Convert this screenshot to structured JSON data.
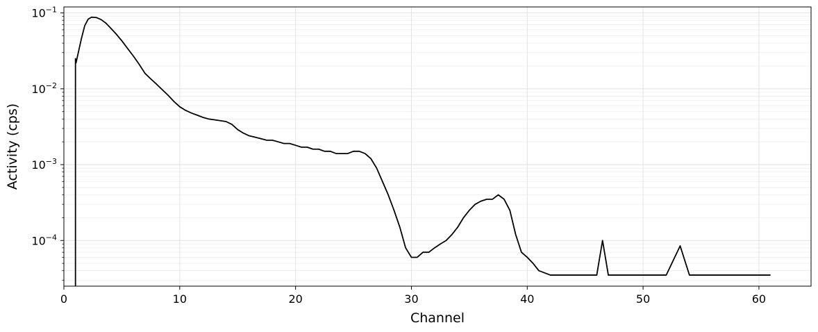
{
  "chart_data": {
    "type": "line",
    "title": "",
    "xlabel": "Channel",
    "ylabel": "Activity (cps)",
    "xlim": [
      0,
      64.5
    ],
    "ylim": [
      2.5e-05,
      0.12
    ],
    "y_scale": "log",
    "grid": true,
    "legend": "none",
    "x_ticks": [
      0,
      10,
      20,
      30,
      40,
      50,
      60
    ],
    "x_tick_labels": [
      "0",
      "10",
      "20",
      "30",
      "40",
      "50",
      "60"
    ],
    "y_ticks": [
      0.1,
      0.01,
      0.001,
      0.0001
    ],
    "y_tick_labels": [
      {
        "base": "10",
        "exp": "−1"
      },
      {
        "base": "10",
        "exp": "−2"
      },
      {
        "base": "10",
        "exp": "−3"
      },
      {
        "base": "10",
        "exp": "−4"
      }
    ],
    "series": [
      {
        "color": "#000000",
        "x": [
          1.0,
          1.05,
          1.2,
          1.5,
          1.8,
          2.1,
          2.4,
          2.8,
          3.2,
          3.6,
          4.0,
          4.5,
          5.0,
          5.5,
          6.0,
          6.5,
          7.0,
          7.5,
          8.0,
          8.5,
          9.0,
          9.5,
          10.0,
          10.5,
          11.0,
          11.5,
          12.0,
          12.5,
          13.0,
          13.5,
          14.0,
          14.5,
          15.0,
          15.5,
          16.0,
          16.5,
          17.0,
          17.5,
          18.0,
          18.5,
          19.0,
          19.5,
          20.0,
          20.5,
          21.0,
          21.5,
          22.0,
          22.5,
          23.0,
          23.5,
          24.0,
          24.5,
          25.0,
          25.5,
          26.0,
          26.5,
          27.0,
          27.5,
          28.0,
          28.5,
          29.0,
          29.5,
          30.0,
          30.5,
          31.0,
          31.5,
          32.0,
          32.5,
          33.0,
          33.5,
          34.0,
          34.5,
          35.0,
          35.5,
          36.0,
          36.5,
          37.0,
          37.5,
          38.0,
          38.5,
          39.0,
          39.5,
          40.0,
          40.5,
          41.0,
          42.0,
          43.0,
          44.0,
          45.0,
          46.0,
          46.5,
          47.0,
          48.0,
          49.0,
          50.0,
          52.0,
          53.2,
          54.0,
          55.0,
          56.5,
          57.0,
          58.0,
          59.0,
          60.0,
          61.0
        ],
        "y": [
          0.025,
          0.022,
          0.028,
          0.045,
          0.068,
          0.083,
          0.088,
          0.087,
          0.082,
          0.074,
          0.064,
          0.053,
          0.043,
          0.034,
          0.027,
          0.021,
          0.016,
          0.0135,
          0.0115,
          0.0097,
          0.0082,
          0.0068,
          0.0058,
          0.0052,
          0.0048,
          0.0045,
          0.0042,
          0.004,
          0.0039,
          0.0038,
          0.0037,
          0.0034,
          0.0029,
          0.0026,
          0.0024,
          0.0023,
          0.0022,
          0.0021,
          0.0021,
          0.002,
          0.0019,
          0.0019,
          0.0018,
          0.0017,
          0.0017,
          0.0016,
          0.0016,
          0.0015,
          0.0015,
          0.0014,
          0.0014,
          0.0014,
          0.0015,
          0.0015,
          0.0014,
          0.0012,
          0.0009,
          0.0006,
          0.0004,
          0.00025,
          0.00015,
          8e-05,
          6e-05,
          6e-05,
          7e-05,
          7e-05,
          8e-05,
          9e-05,
          0.0001,
          0.00012,
          0.00015,
          0.0002,
          0.00025,
          0.0003,
          0.00033,
          0.00035,
          0.00035,
          0.0004,
          0.00035,
          0.00025,
          0.00012,
          7e-05,
          6e-05,
          5e-05,
          4e-05,
          3.5e-05,
          3.5e-05,
          3.5e-05,
          3.5e-05,
          3.5e-05,
          0.0001,
          3.5e-05,
          3.5e-05,
          3.5e-05,
          3.5e-05,
          3.5e-05,
          8.5e-05,
          3.5e-05,
          3.5e-05,
          3.5e-05,
          3.5e-05,
          3.5e-05,
          3.5e-05,
          3.5e-05,
          3.5e-05
        ]
      }
    ]
  }
}
